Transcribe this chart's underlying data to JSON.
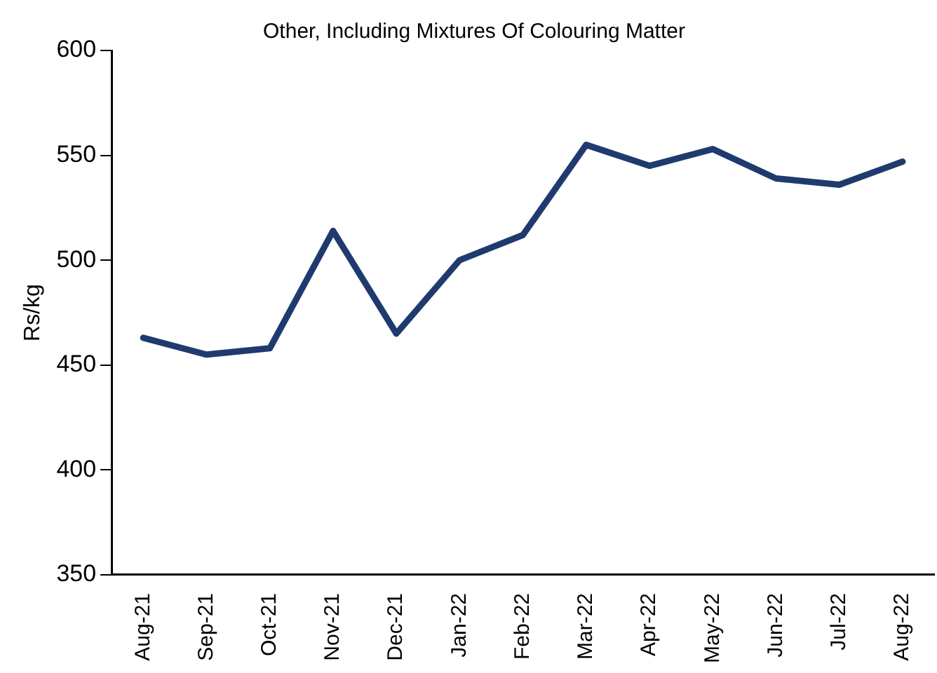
{
  "chart_data": {
    "type": "line",
    "title": "Other, Including Mixtures Of Colouring Matter",
    "ylabel": "Rs/kg",
    "categories": [
      "Aug-21",
      "Sep-21",
      "Oct-21",
      "Nov-21",
      "Dec-21",
      "Jan-22",
      "Feb-22",
      "Mar-22",
      "Apr-22",
      "May-22",
      "Jun-22",
      "Jul-22",
      "Aug-22"
    ],
    "series": [
      {
        "color": "#1f3a6e",
        "values": [
          463,
          455,
          458,
          514,
          465,
          500,
          512,
          555,
          545,
          553,
          539,
          536,
          547
        ]
      }
    ],
    "ylim": [
      350,
      600
    ],
    "yticks": [
      350,
      400,
      450,
      500,
      550,
      600
    ],
    "grid": false,
    "legend": false,
    "marker": "none",
    "line_style": "solid"
  }
}
